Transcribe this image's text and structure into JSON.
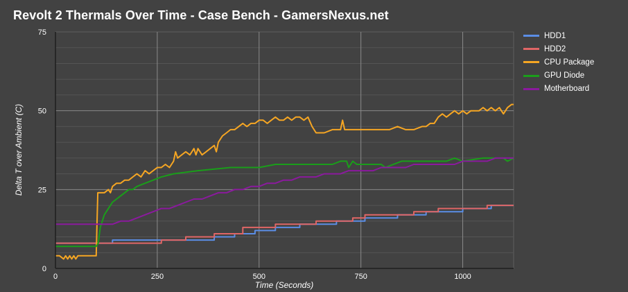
{
  "chart_data": {
    "type": "line",
    "title": "Revolt 2 Thermals Over Time - Case Bench - GamersNexus.net",
    "xlabel": "Time (Seconds)",
    "ylabel": "Delta T over Ambient (C)",
    "xlim": [
      0,
      1125
    ],
    "ylim": [
      0,
      75
    ],
    "xticks": [
      0,
      250,
      500,
      750,
      1000
    ],
    "yticks": [
      0,
      25,
      50,
      75
    ],
    "xtick_labels": [
      "0",
      "250",
      "500",
      "750",
      "1000"
    ],
    "ytick_labels": [
      "0",
      "25",
      "50",
      "75"
    ],
    "grid": true,
    "legend_position": "right",
    "series": [
      {
        "name": "HDD1",
        "color": "#5b8ee6",
        "x": [
          0,
          140,
          140,
          250,
          250,
          390,
          390,
          440,
          440,
          490,
          490,
          540,
          540,
          600,
          600,
          690,
          690,
          720,
          720,
          760,
          760,
          840,
          840,
          910,
          910,
          1000,
          1000,
          1070,
          1070,
          1125
        ],
        "y": [
          8,
          8,
          9,
          9,
          9,
          9,
          10,
          10,
          11,
          11,
          12,
          12,
          13,
          13,
          14,
          14,
          15,
          15,
          15,
          15,
          16,
          16,
          17,
          17,
          18,
          18,
          19,
          19,
          20,
          20
        ]
      },
      {
        "name": "HDD2",
        "color": "#e06666",
        "x": [
          0,
          260,
          260,
          320,
          320,
          390,
          390,
          460,
          460,
          540,
          540,
          640,
          640,
          730,
          730,
          760,
          760,
          880,
          880,
          940,
          940,
          1060,
          1060,
          1125
        ],
        "y": [
          8,
          8,
          9,
          9,
          10,
          10,
          11,
          11,
          13,
          13,
          14,
          14,
          15,
          15,
          16,
          16,
          17,
          17,
          18,
          18,
          19,
          19,
          20,
          20
        ]
      },
      {
        "name": "CPU Package",
        "color": "#f6a623",
        "x": [
          0,
          10,
          20,
          25,
          30,
          35,
          40,
          45,
          50,
          55,
          60,
          70,
          80,
          90,
          100,
          102,
          104,
          110,
          120,
          130,
          135,
          140,
          150,
          160,
          170,
          180,
          190,
          200,
          210,
          220,
          230,
          240,
          250,
          260,
          270,
          280,
          290,
          295,
          300,
          310,
          320,
          330,
          340,
          345,
          350,
          360,
          370,
          380,
          390,
          395,
          400,
          410,
          420,
          430,
          440,
          450,
          460,
          470,
          480,
          490,
          500,
          510,
          520,
          530,
          540,
          550,
          560,
          570,
          580,
          590,
          600,
          610,
          620,
          630,
          640,
          660,
          680,
          700,
          705,
          710,
          720,
          740,
          760,
          780,
          800,
          820,
          840,
          860,
          880,
          900,
          910,
          920,
          930,
          940,
          950,
          960,
          970,
          980,
          990,
          1000,
          1010,
          1020,
          1030,
          1040,
          1050,
          1060,
          1070,
          1080,
          1090,
          1100,
          1110,
          1120,
          1125
        ],
        "y": [
          4,
          4,
          3,
          4,
          3,
          4,
          3,
          4,
          3,
          4,
          4,
          4,
          4,
          4,
          4,
          14,
          24,
          24,
          24,
          25,
          24,
          26,
          27,
          27,
          28,
          28,
          29,
          30,
          29,
          31,
          30,
          31,
          32,
          32,
          33,
          32,
          34,
          37,
          35,
          36,
          37,
          36,
          38,
          36,
          38,
          36,
          37,
          38,
          39,
          37,
          40,
          42,
          43,
          44,
          44,
          45,
          46,
          45,
          46,
          46,
          47,
          47,
          46,
          47,
          48,
          47,
          47,
          48,
          47,
          48,
          48,
          47,
          48,
          45,
          43,
          43,
          44,
          44,
          47,
          44,
          44,
          44,
          44,
          44,
          44,
          44,
          45,
          44,
          44,
          45,
          45,
          46,
          46,
          48,
          49,
          48,
          49,
          50,
          49,
          50,
          49,
          50,
          50,
          50,
          51,
          50,
          51,
          50,
          51,
          49,
          51,
          52,
          52
        ]
      },
      {
        "name": "GPU Diode",
        "color": "#1a9e1a",
        "x": [
          0,
          90,
          100,
          105,
          110,
          115,
          120,
          130,
          140,
          150,
          160,
          170,
          180,
          190,
          200,
          220,
          240,
          260,
          290,
          350,
          430,
          500,
          540,
          600,
          680,
          700,
          715,
          720,
          730,
          740,
          750,
          800,
          810,
          850,
          860,
          960,
          980,
          1000,
          1050,
          1100,
          1110,
          1125
        ],
        "y": [
          7,
          7,
          7,
          8,
          13,
          15,
          17,
          19,
          21,
          22,
          23,
          24,
          25,
          25,
          26,
          27,
          28,
          29,
          30,
          31,
          32,
          32,
          33,
          33,
          33,
          34,
          34,
          32,
          34,
          33,
          33,
          33,
          32,
          34,
          34,
          34,
          35,
          34,
          35,
          35,
          34,
          35
        ]
      },
      {
        "name": "Motherboard",
        "color": "#8b1a9e",
        "x": [
          0,
          100,
          140,
          160,
          180,
          200,
          220,
          240,
          260,
          280,
          300,
          320,
          340,
          360,
          380,
          400,
          420,
          440,
          460,
          480,
          500,
          520,
          540,
          560,
          580,
          600,
          620,
          640,
          660,
          680,
          700,
          720,
          740,
          760,
          780,
          800,
          820,
          840,
          860,
          880,
          900,
          920,
          940,
          960,
          980,
          1000,
          1020,
          1040,
          1060,
          1080,
          1100,
          1125
        ],
        "y": [
          14,
          14,
          14,
          15,
          15,
          16,
          17,
          18,
          19,
          19,
          20,
          21,
          22,
          22,
          23,
          24,
          24,
          25,
          25,
          26,
          26,
          27,
          27,
          28,
          28,
          29,
          29,
          29,
          30,
          30,
          30,
          31,
          31,
          31,
          31,
          32,
          32,
          32,
          32,
          33,
          33,
          33,
          33,
          33,
          33,
          34,
          34,
          34,
          34,
          35,
          35,
          35
        ]
      }
    ]
  }
}
